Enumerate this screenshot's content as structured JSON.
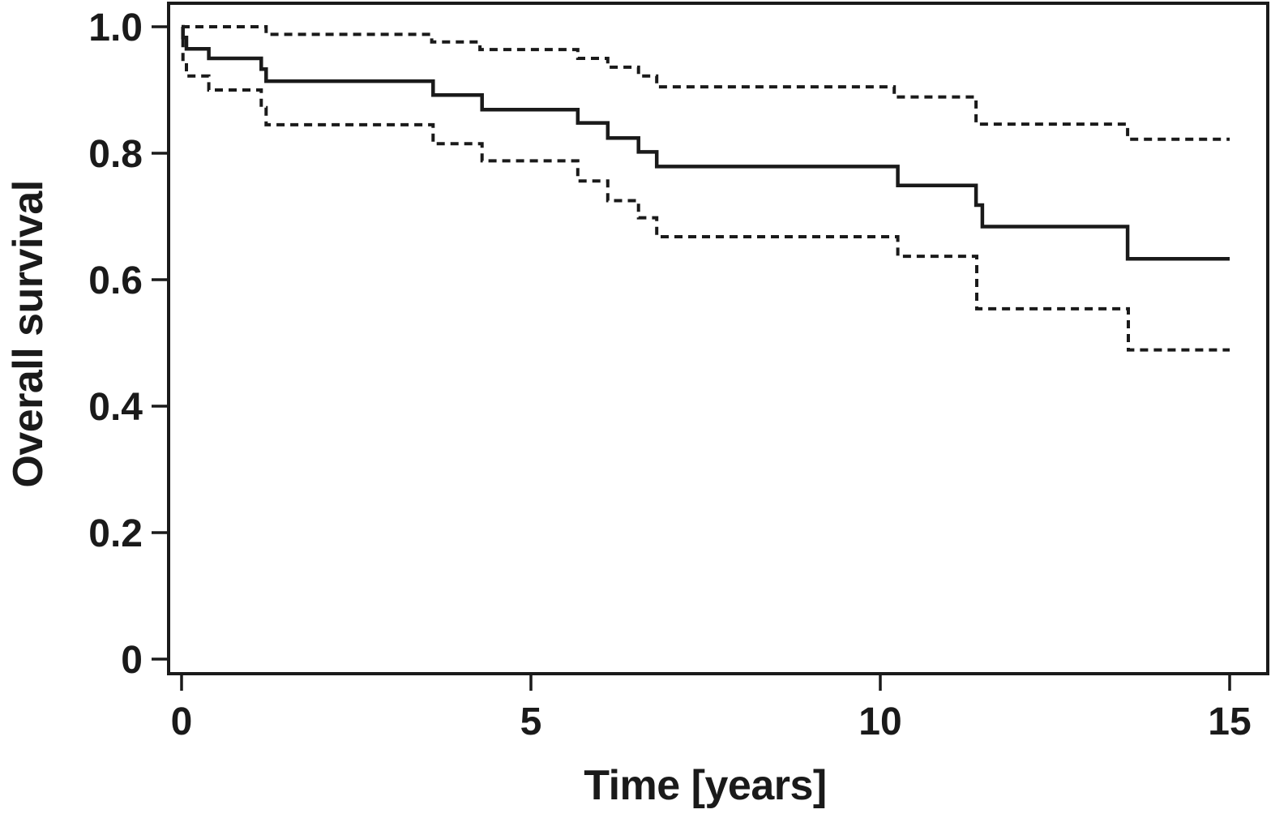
{
  "chart_data": {
    "type": "line",
    "subtype": "kaplan_meier_step",
    "title": "",
    "xlabel": "Time [years]",
    "ylabel": "Overall survival",
    "xlim": [
      0,
      15
    ],
    "ylim": [
      0,
      1.0
    ],
    "x_tick_values": [
      0,
      5,
      10,
      15
    ],
    "x_tick_labels": [
      "0",
      "5",
      "10",
      "15"
    ],
    "y_tick_values": [
      0,
      0.2,
      0.4,
      0.6,
      0.8,
      1.0
    ],
    "y_tick_labels": [
      "0",
      "0.2",
      "0.4",
      "0.6",
      "0.8",
      "1.0"
    ],
    "grid": false,
    "legend": "none",
    "line_color": "#1a1a1a",
    "background_color": "#ffffff",
    "end_time": 15,
    "series": [
      {
        "name": "overall-survival-estimate",
        "style": "solid",
        "points": [
          [
            0,
            1.0
          ],
          [
            0.02,
            0.983
          ],
          [
            0.07,
            0.965
          ],
          [
            0.39,
            0.95
          ],
          [
            1.14,
            0.933
          ],
          [
            1.21,
            0.914
          ],
          [
            3.6,
            0.892
          ],
          [
            4.3,
            0.869
          ],
          [
            5.67,
            0.848
          ],
          [
            6.1,
            0.824
          ],
          [
            6.54,
            0.802
          ],
          [
            6.8,
            0.779
          ],
          [
            10.25,
            0.749
          ],
          [
            11.37,
            0.718
          ],
          [
            11.46,
            0.684
          ],
          [
            13.54,
            0.633
          ]
        ]
      },
      {
        "name": "confidence-band-upper",
        "style": "dashed",
        "points": [
          [
            0,
            1.0
          ],
          [
            1.21,
            0.988
          ],
          [
            3.58,
            0.976
          ],
          [
            4.27,
            0.964
          ],
          [
            5.67,
            0.95
          ],
          [
            6.1,
            0.936
          ],
          [
            6.54,
            0.922
          ],
          [
            6.8,
            0.905
          ],
          [
            10.2,
            0.889
          ],
          [
            11.37,
            0.846
          ],
          [
            13.54,
            0.822
          ]
        ]
      },
      {
        "name": "confidence-band-lower",
        "style": "dashed",
        "points": [
          [
            0,
            1.0
          ],
          [
            0.02,
            0.945
          ],
          [
            0.07,
            0.922
          ],
          [
            0.39,
            0.9
          ],
          [
            1.14,
            0.872
          ],
          [
            1.21,
            0.845
          ],
          [
            3.6,
            0.815
          ],
          [
            4.3,
            0.788
          ],
          [
            5.67,
            0.756
          ],
          [
            6.1,
            0.725
          ],
          [
            6.54,
            0.698
          ],
          [
            6.8,
            0.668
          ],
          [
            10.25,
            0.637
          ],
          [
            11.38,
            0.554
          ],
          [
            13.55,
            0.489
          ]
        ]
      }
    ]
  }
}
